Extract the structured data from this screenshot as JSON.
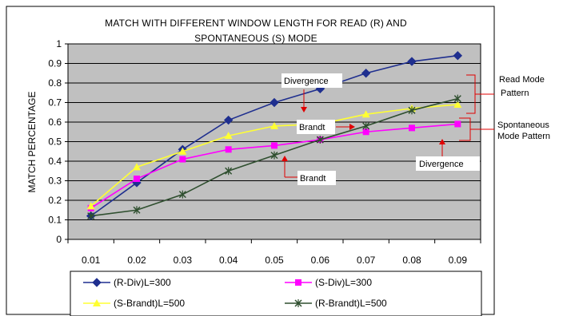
{
  "chart_data": {
    "type": "line",
    "title_lines": [
      "MATCH WITH DIFFERENT WINDOW LENGTH FOR READ (R) AND",
      "SPONTANEOUS (S) MODE"
    ],
    "ylabel": "MATCH PERCENTAGE",
    "xlabel": "",
    "x": [
      0.01,
      0.02,
      0.03,
      0.04,
      0.05,
      0.06,
      0.07,
      0.08,
      0.09
    ],
    "x_tick_labels": [
      "0.01",
      "0.02",
      "0.03",
      "0.04",
      "0.05",
      "0.06",
      "0.07",
      "0.08",
      "0.09"
    ],
    "ylim": [
      0,
      1
    ],
    "y_tick_labels": [
      "0",
      "0.1",
      "0.2",
      "0.3",
      "0.4",
      "0.5",
      "0.6",
      "0.7",
      "0.8",
      "0.9",
      "1"
    ],
    "grid": true,
    "plot_background": "#c0c0c0",
    "series": [
      {
        "name": "(R-Div)L=300",
        "color": "#1f2f8f",
        "marker": "diamond",
        "values": [
          0.12,
          0.29,
          0.46,
          0.61,
          0.7,
          0.77,
          0.85,
          0.91,
          0.94
        ]
      },
      {
        "name": "(S-Div)L=300",
        "color": "#ff00ff",
        "marker": "square",
        "values": [
          0.16,
          0.31,
          0.41,
          0.46,
          0.48,
          0.51,
          0.55,
          0.57,
          0.59
        ]
      },
      {
        "name": "(S-Brandt)L=500",
        "color": "#ffff33",
        "marker": "triangle",
        "values": [
          0.17,
          0.37,
          0.45,
          0.53,
          0.58,
          0.59,
          0.64,
          0.67,
          0.69
        ]
      },
      {
        "name": "(R-Brandt)L=500",
        "color": "#2f4f2f",
        "marker": "star",
        "values": [
          0.12,
          0.15,
          0.23,
          0.35,
          0.43,
          0.51,
          0.58,
          0.66,
          0.72
        ]
      }
    ],
    "annotations": [
      {
        "text": "Divergence"
      },
      {
        "text": "Brandt"
      },
      {
        "text": "Brandt"
      },
      {
        "text": "Divergence"
      }
    ],
    "side_labels": [
      {
        "lines": [
          "Read Mode",
          "Pattern"
        ]
      },
      {
        "lines": [
          "Spontaneous",
          "Mode Pattern"
        ]
      }
    ],
    "legend_placement": "bottom"
  }
}
